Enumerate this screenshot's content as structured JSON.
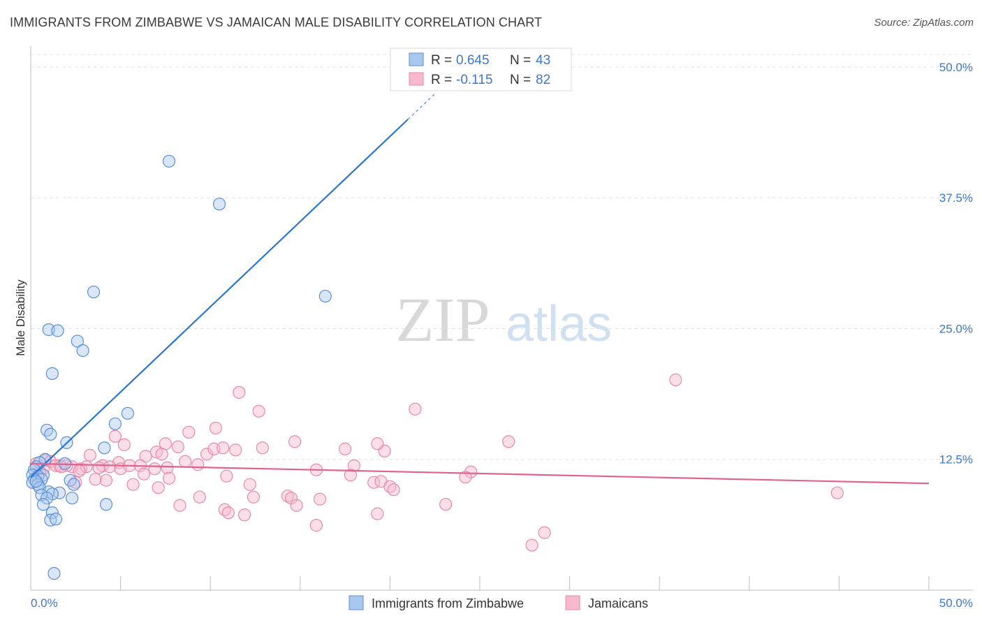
{
  "header": {
    "title": "IMMIGRANTS FROM ZIMBABWE VS JAMAICAN MALE DISABILITY CORRELATION CHART",
    "source": "Source: ZipAtlas.com"
  },
  "watermark": {
    "zip": "ZIP",
    "atlas": "atlas"
  },
  "legend_top": {
    "rows": [
      {
        "r_label": "R =",
        "r_value": "0.645",
        "n_label": "N =",
        "n_value": "43"
      },
      {
        "r_label": "R =",
        "r_value": "-0.115",
        "n_label": "N =",
        "n_value": "82"
      }
    ]
  },
  "legend_bottom": {
    "items": [
      "Immigrants from Zimbabwe",
      "Jamaicans"
    ]
  },
  "colors": {
    "zimbabwe_fill": "#a9c8f0",
    "zimbabwe_stroke": "#5b8fd4",
    "zimbabwe_line": "#2a74d2",
    "jamaica_fill": "#f6b8cc",
    "jamaica_stroke": "#e68aa8",
    "jamaica_line": "#e0638f",
    "axis_label": "#3d78c8",
    "grid": "#e3e3e3"
  },
  "chart_data": {
    "type": "scatter",
    "title": "IMMIGRANTS FROM ZIMBABWE VS JAMAICAN MALE DISABILITY CORRELATION CHART",
    "ylabel": "Male Disability",
    "xlabel": "",
    "xlim": [
      0,
      50
    ],
    "ylim": [
      0,
      52
    ],
    "x_tick_labels": [
      "0.0%",
      "50.0%"
    ],
    "y_ticks": [
      12.5,
      25.0,
      37.5,
      50.0
    ],
    "y_tick_labels": [
      "12.5%",
      "25.0%",
      "37.5%",
      "50.0%"
    ],
    "grid": true,
    "legend_position": "top-center",
    "series": [
      {
        "name": "Immigrants from Zimbabwe",
        "R": 0.645,
        "N": 43,
        "trend": {
          "x0": 0.0,
          "y0": 10.8,
          "x1": 21.0,
          "y1": 45.0,
          "dash_to_x": 22.5
        },
        "points": [
          [
            7.7,
            41.0
          ],
          [
            10.5,
            36.9
          ],
          [
            3.5,
            28.5
          ],
          [
            16.4,
            28.1
          ],
          [
            1.0,
            24.9
          ],
          [
            1.5,
            24.8
          ],
          [
            2.6,
            23.8
          ],
          [
            2.9,
            22.9
          ],
          [
            1.2,
            20.7
          ],
          [
            5.4,
            16.9
          ],
          [
            4.7,
            15.9
          ],
          [
            0.9,
            15.3
          ],
          [
            1.1,
            14.9
          ],
          [
            2.0,
            14.1
          ],
          [
            4.1,
            13.6
          ],
          [
            0.8,
            12.5
          ],
          [
            0.5,
            12.2
          ],
          [
            1.9,
            12.1
          ],
          [
            0.3,
            11.8
          ],
          [
            0.2,
            11.5
          ],
          [
            0.1,
            11.0
          ],
          [
            0.7,
            11.0
          ],
          [
            0.4,
            10.9
          ],
          [
            0.2,
            10.6
          ],
          [
            0.6,
            10.6
          ],
          [
            0.1,
            10.3
          ],
          [
            0.4,
            10.1
          ],
          [
            2.2,
            10.5
          ],
          [
            2.4,
            10.1
          ],
          [
            0.5,
            9.8
          ],
          [
            1.0,
            9.4
          ],
          [
            1.6,
            9.3
          ],
          [
            1.2,
            9.2
          ],
          [
            0.6,
            9.1
          ],
          [
            0.9,
            8.8
          ],
          [
            2.3,
            8.8
          ],
          [
            0.7,
            8.2
          ],
          [
            4.2,
            8.2
          ],
          [
            1.2,
            7.4
          ],
          [
            1.1,
            6.7
          ],
          [
            1.4,
            6.8
          ],
          [
            1.3,
            1.6
          ],
          [
            0.3,
            10.4
          ]
        ]
      },
      {
        "name": "Jamaicans",
        "R": -0.115,
        "N": 82,
        "trend": {
          "x0": 0.0,
          "y0": 12.1,
          "x1": 50.0,
          "y1": 10.2
        },
        "points": [
          [
            35.9,
            20.1
          ],
          [
            11.6,
            18.9
          ],
          [
            12.7,
            17.1
          ],
          [
            21.4,
            17.3
          ],
          [
            8.8,
            15.1
          ],
          [
            10.3,
            15.5
          ],
          [
            4.7,
            14.7
          ],
          [
            5.2,
            13.9
          ],
          [
            7.5,
            14.0
          ],
          [
            8.2,
            13.7
          ],
          [
            9.8,
            13.0
          ],
          [
            10.2,
            13.5
          ],
          [
            10.7,
            13.6
          ],
          [
            11.4,
            13.4
          ],
          [
            12.9,
            13.6
          ],
          [
            14.7,
            14.2
          ],
          [
            17.5,
            13.5
          ],
          [
            19.7,
            13.3
          ],
          [
            19.3,
            14.0
          ],
          [
            26.6,
            14.2
          ],
          [
            3.3,
            12.9
          ],
          [
            4.9,
            12.2
          ],
          [
            6.4,
            12.8
          ],
          [
            7.0,
            13.2
          ],
          [
            7.3,
            13.0
          ],
          [
            8.6,
            12.3
          ],
          [
            9.3,
            12.0
          ],
          [
            0.8,
            12.4
          ],
          [
            1.1,
            12.3
          ],
          [
            0.3,
            12.1
          ],
          [
            1.6,
            11.9
          ],
          [
            2.3,
            11.8
          ],
          [
            2.8,
            11.6
          ],
          [
            3.1,
            11.8
          ],
          [
            4.0,
            11.9
          ],
          [
            4.4,
            11.8
          ],
          [
            5.0,
            11.6
          ],
          [
            5.5,
            11.9
          ],
          [
            6.1,
            11.9
          ],
          [
            6.9,
            11.6
          ],
          [
            7.6,
            11.7
          ],
          [
            1.4,
            11.9
          ],
          [
            0.7,
            11.6
          ],
          [
            2.0,
            11.9
          ],
          [
            15.9,
            11.5
          ],
          [
            18.0,
            11.9
          ],
          [
            24.5,
            11.3
          ],
          [
            17.8,
            11.0
          ],
          [
            6.3,
            11.1
          ],
          [
            24.2,
            10.8
          ],
          [
            12.2,
            10.1
          ],
          [
            10.9,
            10.9
          ],
          [
            7.7,
            10.7
          ],
          [
            3.6,
            10.6
          ],
          [
            2.5,
            10.3
          ],
          [
            4.2,
            10.5
          ],
          [
            5.7,
            10.1
          ],
          [
            7.1,
            9.8
          ],
          [
            19.1,
            10.3
          ],
          [
            19.5,
            10.4
          ],
          [
            20.0,
            9.9
          ],
          [
            20.2,
            9.6
          ],
          [
            44.9,
            9.3
          ],
          [
            9.4,
            8.9
          ],
          [
            12.4,
            8.9
          ],
          [
            14.3,
            9.0
          ],
          [
            14.5,
            8.8
          ],
          [
            16.1,
            8.7
          ],
          [
            23.1,
            8.2
          ],
          [
            8.3,
            8.1
          ],
          [
            14.8,
            8.1
          ],
          [
            10.8,
            7.7
          ],
          [
            11.0,
            7.4
          ],
          [
            11.9,
            7.2
          ],
          [
            19.3,
            7.3
          ],
          [
            15.9,
            6.2
          ],
          [
            28.6,
            5.5
          ],
          [
            27.9,
            4.3
          ],
          [
            1.7,
            11.8
          ],
          [
            3.8,
            11.7
          ],
          [
            0.5,
            11.3
          ],
          [
            2.7,
            11.4
          ]
        ]
      }
    ]
  }
}
